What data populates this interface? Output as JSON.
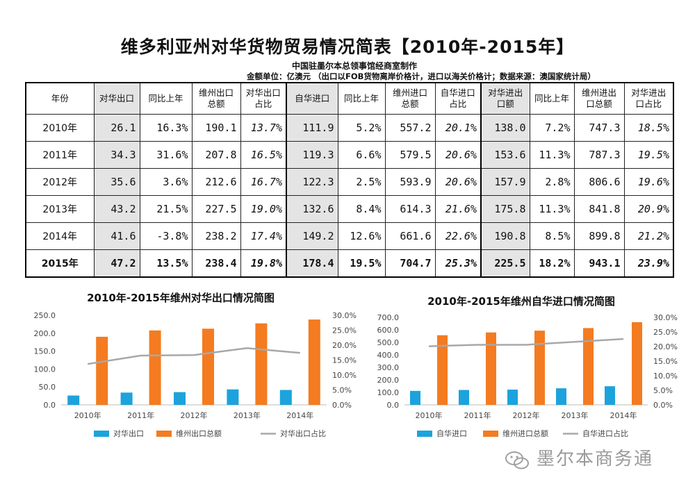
{
  "title": "维多利亚州对华货物贸易情况简表【2010年-2015年】",
  "maker": "中国驻墨尔本总领事馆经商室制作",
  "unit_note": "金额单位：亿澳元  （出口以FOB货物离岸价格计，进口以海关价格计；数据来源：澳国家统计局）",
  "table": {
    "headers": [
      "年份",
      "对华出口",
      "同比上年",
      "维州出口总额",
      "对华出口占比",
      "自华进口",
      "同比上年",
      "维州进口总额",
      "自华进口占比",
      "对华进出口额",
      "同比上年",
      "维州进出口总额",
      "对华进出口占比"
    ],
    "rows": [
      [
        "2010年",
        "26.1",
        "16.3%",
        "190.1",
        "13.7%",
        "111.9",
        "5.2%",
        "557.2",
        "20.1%",
        "138.0",
        "7.2%",
        "747.3",
        "18.5%"
      ],
      [
        "2011年",
        "34.3",
        "31.6%",
        "207.8",
        "16.5%",
        "119.3",
        "6.6%",
        "579.5",
        "20.6%",
        "153.6",
        "11.3%",
        "787.3",
        "19.5%"
      ],
      [
        "2012年",
        "35.6",
        "3.6%",
        "212.6",
        "16.7%",
        "122.3",
        "2.5%",
        "593.9",
        "20.6%",
        "157.9",
        "2.8%",
        "806.6",
        "19.6%"
      ],
      [
        "2013年",
        "43.2",
        "21.5%",
        "227.5",
        "19.0%",
        "132.6",
        "8.4%",
        "614.3",
        "21.6%",
        "175.8",
        "11.3%",
        "841.8",
        "20.9%"
      ],
      [
        "2014年",
        "41.6",
        "-3.8%",
        "238.2",
        "17.4%",
        "149.2",
        "12.6%",
        "661.6",
        "22.6%",
        "190.8",
        "8.5%",
        "899.8",
        "21.2%"
      ],
      [
        "2015年",
        "47.2",
        "13.5%",
        "238.4",
        "19.8%",
        "178.4",
        "19.5%",
        "704.7",
        "25.3%",
        "225.5",
        "18.2%",
        "943.1",
        "23.9%"
      ]
    ]
  },
  "chart_data": [
    {
      "type": "bar",
      "title": "2010年-2015年维州对华出口情况简图",
      "categories": [
        "2010年",
        "2011年",
        "2012年",
        "2013年",
        "2014年"
      ],
      "series": [
        {
          "name": "对华出口",
          "kind": "bar",
          "axis": "left",
          "color": "#1ca3dc",
          "values": [
            26.1,
            34.3,
            35.6,
            43.2,
            41.6
          ]
        },
        {
          "name": "维州出口总额",
          "kind": "bar",
          "axis": "left",
          "color": "#f47b20",
          "values": [
            190.1,
            207.8,
            212.6,
            227.5,
            238.2
          ]
        },
        {
          "name": "对华出口占比",
          "kind": "line",
          "axis": "right",
          "color": "#a8a8a8",
          "values": [
            13.7,
            16.5,
            16.7,
            19.0,
            17.4
          ]
        }
      ],
      "yticks": [
        "0.0",
        "50.0",
        "100.0",
        "150.0",
        "200.0",
        "250.0"
      ],
      "ylim": [
        0,
        250
      ],
      "y2ticks": [
        "0.0%",
        "5.0%",
        "10.0%",
        "15.0%",
        "20.0%",
        "25.0%",
        "30.0%"
      ],
      "y2lim": [
        0,
        30
      ]
    },
    {
      "type": "bar",
      "title": "2010年-2015年维州自华进口情况简图",
      "categories": [
        "2010年",
        "2011年",
        "2012年",
        "2013年",
        "2014年"
      ],
      "series": [
        {
          "name": "自华进口",
          "kind": "bar",
          "axis": "left",
          "color": "#1ca3dc",
          "values": [
            111.9,
            119.3,
            122.3,
            132.6,
            149.2
          ]
        },
        {
          "name": "维州进口总额",
          "kind": "bar",
          "axis": "left",
          "color": "#f47b20",
          "values": [
            557.2,
            579.5,
            593.9,
            614.3,
            661.6
          ]
        },
        {
          "name": "自华进口占比",
          "kind": "line",
          "axis": "right",
          "color": "#a8a8a8",
          "values": [
            20.1,
            20.6,
            20.6,
            21.6,
            22.6
          ]
        }
      ],
      "yticks": [
        "0.0",
        "100.0",
        "200.0",
        "300.0",
        "400.0",
        "500.0",
        "600.0",
        "700.0"
      ],
      "ylim": [
        0,
        700
      ],
      "y2ticks": [
        "0.0%",
        "5.0%",
        "10.0%",
        "15.0%",
        "20.0%",
        "25.0%",
        "30.0%"
      ],
      "y2lim": [
        0,
        30
      ]
    }
  ],
  "watermark": "墨尔本商务通"
}
